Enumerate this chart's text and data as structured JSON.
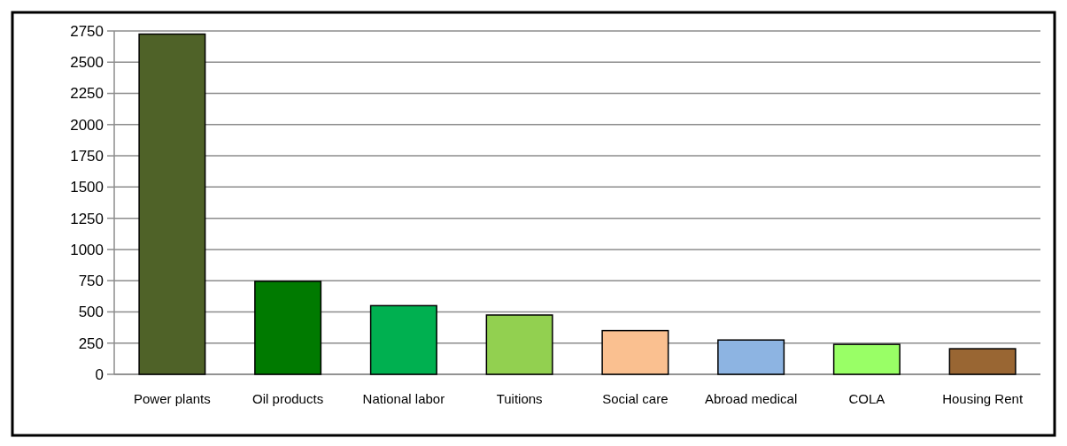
{
  "chart_data": {
    "type": "bar",
    "categories": [
      "Power plants",
      "Oil products",
      "National labor",
      "Tuitions",
      "Social care",
      "Abroad medical",
      "COLA",
      "Housing Rent"
    ],
    "values": [
      2725,
      745,
      550,
      475,
      350,
      275,
      240,
      205
    ],
    "colors": [
      "#4f6228",
      "#007a00",
      "#00b050",
      "#92d050",
      "#fac090",
      "#8db4e2",
      "#99ff66",
      "#996633"
    ],
    "ylim": [
      0,
      2750
    ],
    "yticks": [
      0,
      250,
      500,
      750,
      1000,
      1250,
      1500,
      1750,
      2000,
      2250,
      2500,
      2750
    ],
    "grid": "y"
  }
}
